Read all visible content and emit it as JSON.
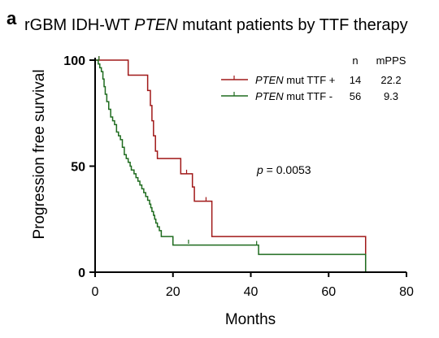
{
  "panel_letter": "a",
  "chart_data": {
    "type": "line",
    "subtype": "kaplan-meier step",
    "title_prefix": "rGBM IDH-WT ",
    "title_italic": "PTEN",
    "title_suffix": " mutant patients by TTF therapy",
    "xlabel": "Months",
    "ylabel": "Progression free survival",
    "xlim": [
      0,
      80
    ],
    "ylim": [
      0,
      100
    ],
    "xticks": [
      "0",
      "20",
      "40",
      "60",
      "80"
    ],
    "yticks": [
      "0",
      "50",
      "100"
    ],
    "legend_position": "top-right",
    "legend_headers": {
      "n": "n",
      "mpps": "mPPS"
    },
    "series": [
      {
        "name_italic": "PTEN",
        "name_rest": " mut TTF +",
        "n": "14",
        "mpps": "22.2",
        "color": "#a01818",
        "steps": [
          [
            0,
            100
          ],
          [
            8.5,
            92.9
          ],
          [
            13.5,
            85.7
          ],
          [
            14.2,
            78.6
          ],
          [
            14.6,
            71.4
          ],
          [
            15,
            64.3
          ],
          [
            15.5,
            57.1
          ],
          [
            16,
            53.6
          ],
          [
            22,
            46.4
          ],
          [
            25,
            40.2
          ],
          [
            25.5,
            33.5
          ],
          [
            30,
            16.8
          ],
          [
            69.5,
            0
          ]
        ],
        "censors": [
          [
            1,
            100
          ],
          [
            23.5,
            46.4
          ],
          [
            28.5,
            33.5
          ]
        ],
        "end_x": 69.5
      },
      {
        "name_italic": "PTEN",
        "name_rest": " mut TTF -",
        "n": "56",
        "mpps": "9.3",
        "color": "#1e6b1e",
        "steps": [
          [
            0,
            100
          ],
          [
            0.8,
            98.2
          ],
          [
            1.2,
            96.4
          ],
          [
            1.6,
            94.6
          ],
          [
            2,
            91.1
          ],
          [
            2.3,
            87.5
          ],
          [
            2.6,
            83.9
          ],
          [
            3,
            80.4
          ],
          [
            3.5,
            76.8
          ],
          [
            4,
            73.2
          ],
          [
            4.5,
            71.4
          ],
          [
            5,
            69.6
          ],
          [
            5.5,
            66.1
          ],
          [
            6,
            64.3
          ],
          [
            6.5,
            62.5
          ],
          [
            7,
            58.9
          ],
          [
            7.5,
            55.4
          ],
          [
            8,
            53.6
          ],
          [
            8.5,
            51.8
          ],
          [
            9,
            50
          ],
          [
            9.3,
            48.2
          ],
          [
            10,
            46.4
          ],
          [
            10.5,
            44.6
          ],
          [
            11,
            42.9
          ],
          [
            11.5,
            41.1
          ],
          [
            12,
            39.3
          ],
          [
            12.5,
            37.5
          ],
          [
            13,
            35.7
          ],
          [
            13.5,
            33.9
          ],
          [
            14,
            32.1
          ],
          [
            14.3,
            30.4
          ],
          [
            14.6,
            28.6
          ],
          [
            15,
            26.8
          ],
          [
            15.3,
            25
          ],
          [
            15.6,
            23.2
          ],
          [
            16,
            21.4
          ],
          [
            16.5,
            19.6
          ],
          [
            17,
            16.8
          ],
          [
            20,
            12.8
          ],
          [
            42,
            8.4
          ],
          [
            69.5,
            0
          ]
        ],
        "censors": [
          [
            1,
            100
          ],
          [
            24,
            13.4
          ],
          [
            41.5,
            12.8
          ]
        ],
        "end_x": 69.5
      }
    ],
    "annotation_prefix": "p",
    "annotation_suffix": " = 0.0053"
  }
}
